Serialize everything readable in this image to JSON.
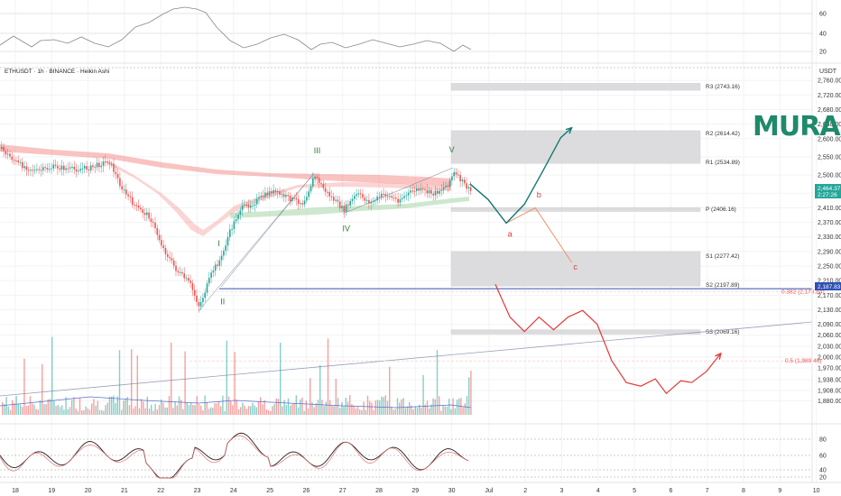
{
  "header": {
    "symbol_line": "ETHUSDT · 1h · BINANCE · Heikin Ashi",
    "currency": "USDT"
  },
  "brand": {
    "logo_text": "MURA",
    "color": "#1e8a6a"
  },
  "colors": {
    "bull": "#26a69a",
    "bear": "#ef5350",
    "teal_arrow": "#127a72",
    "red_path": "#e53935",
    "orange_path": "#f28a57",
    "pivot_box": "#d7d7d9",
    "hline": "#2f4fb3",
    "wave_green": "#2e7d32",
    "fib": "#ef5350"
  },
  "chart_data": {
    "type": "line",
    "series_kind": "candlestick",
    "x_ticks": [
      "18",
      "19",
      "20",
      "21",
      "22",
      "23",
      "24",
      "25",
      "26",
      "27",
      "28",
      "29",
      "30",
      "Jul",
      "2",
      "3",
      "4",
      "5",
      "6",
      "7",
      "8",
      "9",
      "10"
    ],
    "price_axis": {
      "ticks": [
        "2,760.00",
        "2,720.00",
        "2,680.00",
        "2,640.00",
        "2,600.00",
        "2,550.00",
        "2,500.00",
        "2,450.00",
        "2,410.00",
        "2,370.00",
        "2,330.00",
        "2,290.00",
        "2,250.00",
        "2,210.00",
        "2,170.00",
        "2,130.00",
        "2,090.00",
        "2,060.00",
        "2,030.00",
        "2,000.00",
        "1,970.00",
        "1,938.00",
        "1,908.00",
        "1,880.00"
      ],
      "last_price_label": "2,464.37",
      "last_price_sublabel": "2:27:26",
      "hline_label": "2,187.83"
    },
    "pivots": [
      {
        "name": "R3 (2743.16)",
        "value": 2743.16
      },
      {
        "name": "R2 (2614.42)",
        "value": 2614.42
      },
      {
        "name": "R1 (2534.89)",
        "value": 2534.89
      },
      {
        "name": "P (2406.16)",
        "value": 2406.16
      },
      {
        "name": "S1 (2277.42)",
        "value": 2277.42
      },
      {
        "name": "S2 (2197.89)",
        "value": 2197.89
      },
      {
        "name": "S3 (2069.16)",
        "value": 2069.16
      }
    ],
    "fib_levels": [
      {
        "label": "0.382 (2,178.84)",
        "value": 2178.84
      },
      {
        "label": "0.5 (1,989.46)",
        "value": 1989.46
      }
    ],
    "horizontal_line": 2187.83,
    "elliott_labels": [
      {
        "label": "I",
        "value": 2305,
        "day": 23.6,
        "color": "#2e7d32"
      },
      {
        "label": "II",
        "value": 2145,
        "day": 23.7,
        "color": "#2e7d32"
      },
      {
        "label": "III",
        "value": 2560,
        "day": 26.3,
        "color": "#2e7d32"
      },
      {
        "label": "IV",
        "value": 2345,
        "day": 27.1,
        "color": "#2e7d32"
      },
      {
        "label": "V",
        "value": 2562,
        "day": 30.0,
        "color": "#2e7d32"
      },
      {
        "label": "a",
        "value": 2330,
        "day": 31.6,
        "color": "#e53935"
      },
      {
        "label": "b",
        "value": 2438,
        "day": 32.4,
        "color": "#e53935"
      },
      {
        "label": "c",
        "value": 2240,
        "day": 33.4,
        "color": "#e53935"
      }
    ],
    "projection_teal": [
      [
        30.5,
        2476
      ],
      [
        31.0,
        2433
      ],
      [
        31.5,
        2368
      ],
      [
        32.0,
        2420
      ],
      [
        32.5,
        2510
      ],
      [
        33.0,
        2603
      ],
      [
        33.3,
        2630
      ]
    ],
    "projection_orange": [
      [
        31.0,
        2433
      ],
      [
        31.5,
        2368
      ],
      [
        32.3,
        2410
      ],
      [
        33.3,
        2260
      ]
    ],
    "projection_red": [
      [
        31.2,
        2200
      ],
      [
        31.6,
        2110
      ],
      [
        32.0,
        2070
      ],
      [
        32.4,
        2110
      ],
      [
        32.8,
        2075
      ],
      [
        33.2,
        2110
      ],
      [
        33.6,
        2128
      ],
      [
        34.0,
        2090
      ],
      [
        34.4,
        1990
      ],
      [
        34.8,
        1930
      ],
      [
        35.2,
        1920
      ],
      [
        35.6,
        1940
      ],
      [
        35.9,
        1900
      ],
      [
        36.3,
        1935
      ],
      [
        36.6,
        1930
      ],
      [
        37.0,
        1960
      ],
      [
        37.4,
        2010
      ]
    ],
    "oscillator_top": {
      "ticks": [
        "60",
        "40",
        "20"
      ]
    },
    "oscillator_bottom": {
      "ticks": [
        "80",
        "60",
        "40",
        "20"
      ]
    }
  }
}
